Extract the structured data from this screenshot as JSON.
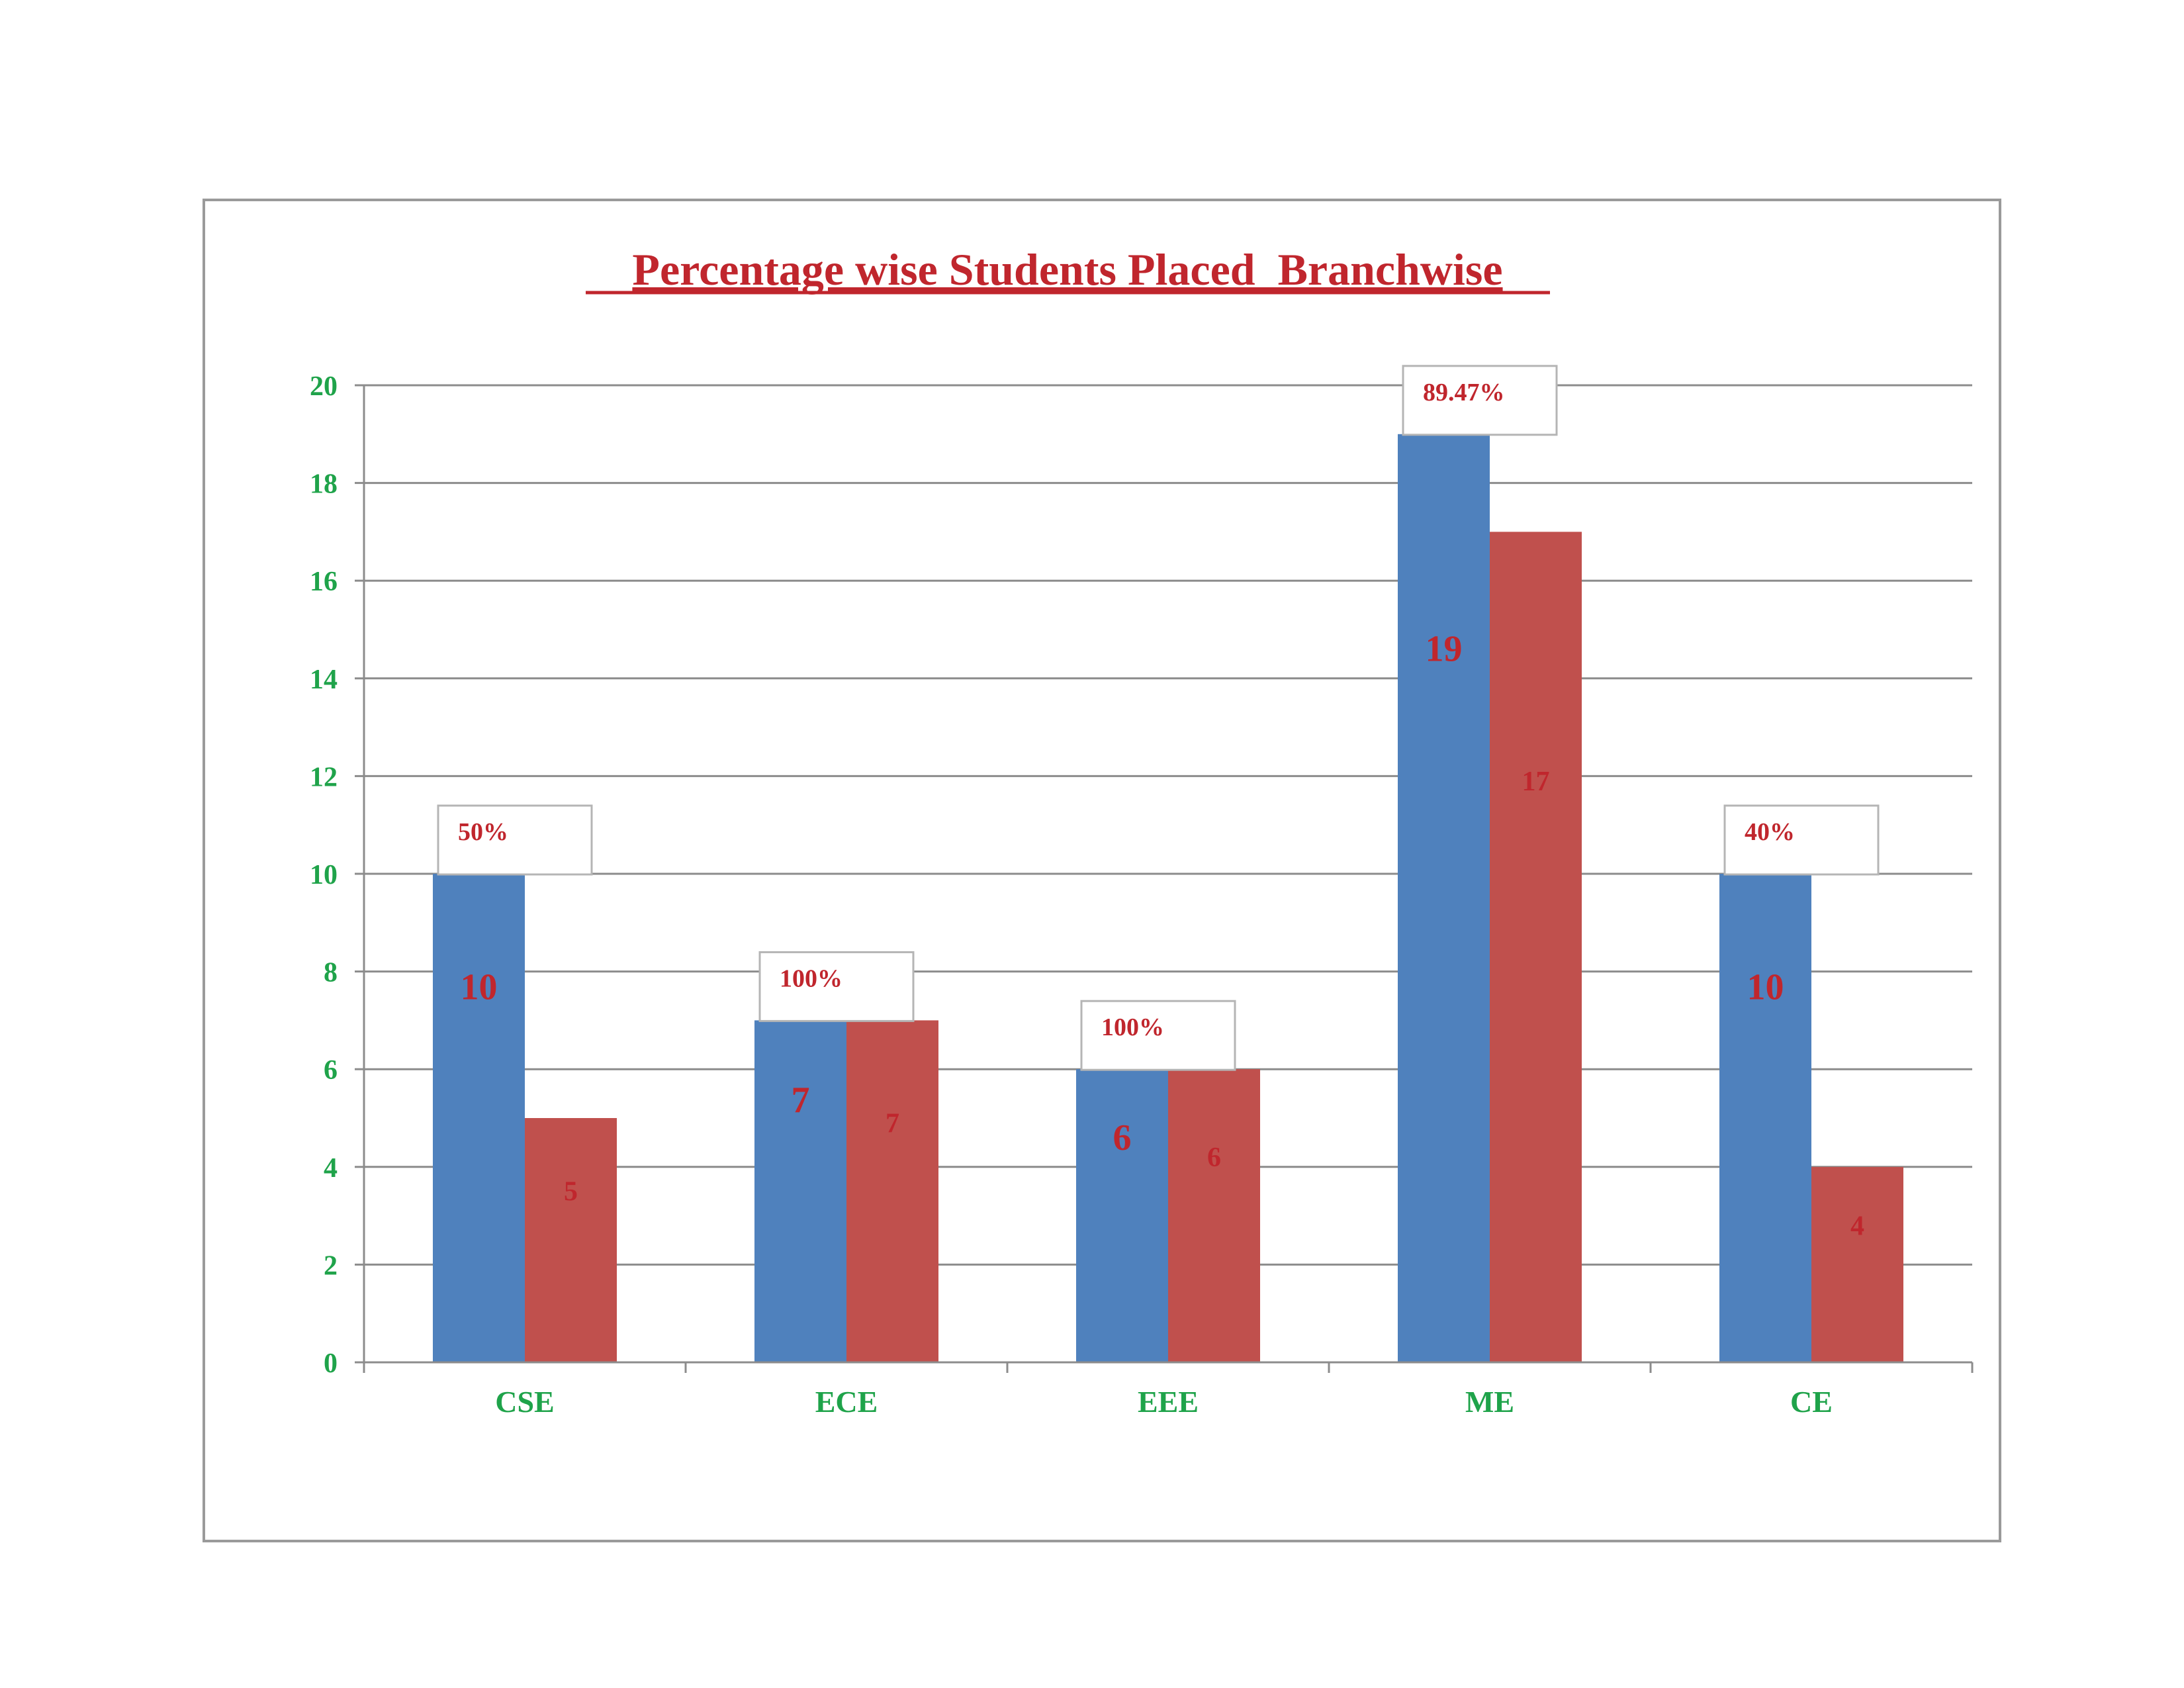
{
  "chart_data": {
    "type": "bar",
    "title": "Percentage wise Students Placed  Branchwise",
    "xlabel": "",
    "ylabel": "",
    "categories": [
      "CSE",
      "ECE",
      "EEE",
      "ME",
      "CE"
    ],
    "series": [
      {
        "values": [
          10,
          7,
          6,
          19,
          10
        ],
        "color": "#4f81bd"
      },
      {
        "values": [
          5,
          7,
          6,
          17,
          4
        ],
        "color": "#c0504d"
      }
    ],
    "percent_labels": [
      "50%",
      "100%",
      "100%",
      "89.47%",
      "40%"
    ],
    "ylim": [
      0,
      20
    ],
    "yticks": [
      "0",
      "2",
      "4",
      "6",
      "8",
      "10",
      "12",
      "14",
      "16",
      "18",
      "20"
    ],
    "grid": true,
    "legend": "none",
    "colors": {
      "title": "#c0262d",
      "axis_labels": "#1fa34a",
      "data_labels": "#c0262d",
      "gridline": "#8c8c8c",
      "frame": "#9a9a9a"
    }
  }
}
